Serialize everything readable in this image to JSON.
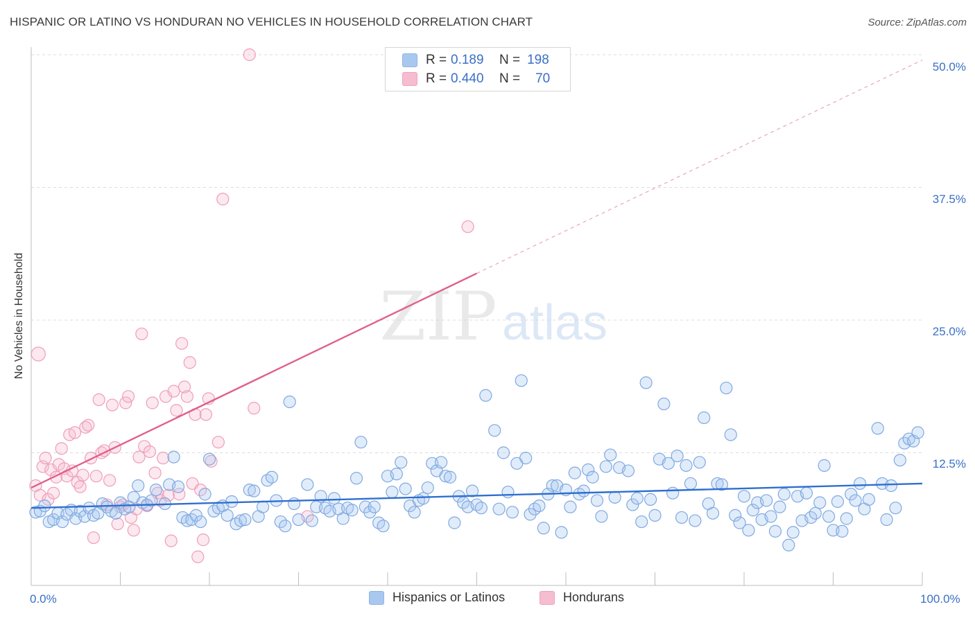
{
  "title": "HISPANIC OR LATINO VS HONDURAN NO VEHICLES IN HOUSEHOLD CORRELATION CHART",
  "source": "Source: ZipAtlas.com",
  "watermark": {
    "zip": "ZIP",
    "atlas": "atlas"
  },
  "colors": {
    "blue": "#8fb8ea",
    "blue_line": "#2e6fcf",
    "pink": "#f2a6bf",
    "pink_line": "#e0608a",
    "tick_text": "#3a6fc4"
  },
  "legend": {
    "rows": [
      {
        "r_label": "R =",
        "r_value": "0.189",
        "n_label": "N =",
        "n_value": "198",
        "color": "#a9c8f0"
      },
      {
        "r_label": "R =",
        "r_value": "0.440",
        "n_label": "N =",
        "n_value": "70",
        "color": "#f6bcd0"
      }
    ]
  },
  "bottom_legend": [
    {
      "label": "Hispanics or Latinos",
      "color": "#a9c8f0"
    },
    {
      "label": "Hondurans",
      "color": "#f6bcd0"
    }
  ],
  "chart_data": {
    "type": "scatter",
    "xlabel": "",
    "ylabel": "No Vehicles in Household",
    "xlim": [
      0,
      100
    ],
    "ylim": [
      0,
      50
    ],
    "x_tick_labels": [
      "0.0%",
      "100.0%"
    ],
    "y_tick_labels": [
      "12.5%",
      "25.0%",
      "37.5%",
      "50.0%"
    ],
    "y_ticks": [
      12.5,
      25,
      37.5,
      50
    ],
    "grid": true,
    "series": [
      {
        "name": "Hispanics or Latinos",
        "trend": {
          "x": [
            0,
            100
          ],
          "y": [
            7.3,
            9.6
          ]
        },
        "points": [
          [
            0.5,
            6.9
          ],
          [
            1,
            7.0
          ],
          [
            1.5,
            7.5
          ],
          [
            2,
            6.0
          ],
          [
            2.5,
            6.2
          ],
          [
            3,
            6.8
          ],
          [
            3.5,
            6.0
          ],
          [
            4,
            6.7
          ],
          [
            4.5,
            7.1
          ],
          [
            5,
            6.3
          ],
          [
            5.5,
            7.0
          ],
          [
            6,
            6.5
          ],
          [
            6.5,
            7.3
          ],
          [
            7,
            6.6
          ],
          [
            7.5,
            6.8
          ],
          [
            8,
            7.7
          ],
          [
            8.5,
            7.4
          ],
          [
            9,
            7.0
          ],
          [
            9.5,
            6.8
          ],
          [
            10,
            7.8
          ],
          [
            10.5,
            7.2
          ],
          [
            11,
            7.4
          ],
          [
            11.5,
            8.3
          ],
          [
            12,
            9.4
          ],
          [
            12.5,
            7.8
          ],
          [
            13,
            7.6
          ],
          [
            13.5,
            8.0
          ],
          [
            14,
            9.0
          ],
          [
            15,
            7.7
          ],
          [
            15.5,
            9.5
          ],
          [
            16,
            12.1
          ],
          [
            16.5,
            9.3
          ],
          [
            17,
            6.4
          ],
          [
            17.5,
            6.1
          ],
          [
            18,
            6.2
          ],
          [
            18.5,
            6.6
          ],
          [
            19,
            6.0
          ],
          [
            19.5,
            8.6
          ],
          [
            20,
            11.9
          ],
          [
            20.5,
            7.0
          ],
          [
            21,
            7.3
          ],
          [
            21.5,
            7.5
          ],
          [
            22,
            6.6
          ],
          [
            22.5,
            7.9
          ],
          [
            23,
            5.8
          ],
          [
            23.5,
            6.1
          ],
          [
            24,
            6.2
          ],
          [
            24.5,
            9.0
          ],
          [
            25,
            8.9
          ],
          [
            25.5,
            6.5
          ],
          [
            26,
            7.4
          ],
          [
            26.5,
            9.9
          ],
          [
            27,
            10.2
          ],
          [
            27.5,
            8.0
          ],
          [
            28,
            6.0
          ],
          [
            28.5,
            5.6
          ],
          [
            29,
            17.3
          ],
          [
            29.5,
            7.7
          ],
          [
            30,
            6.2
          ],
          [
            31,
            9.5
          ],
          [
            31.5,
            6.1
          ],
          [
            32,
            7.4
          ],
          [
            32.5,
            8.4
          ],
          [
            33,
            7.3
          ],
          [
            33.5,
            7.0
          ],
          [
            34,
            8.2
          ],
          [
            34.5,
            7.2
          ],
          [
            35,
            6.3
          ],
          [
            35.5,
            7.3
          ],
          [
            36,
            7.1
          ],
          [
            36.5,
            10.1
          ],
          [
            37,
            13.5
          ],
          [
            37.5,
            7.4
          ],
          [
            38,
            6.9
          ],
          [
            38.5,
            7.4
          ],
          [
            39,
            5.9
          ],
          [
            39.5,
            5.6
          ],
          [
            40,
            10.3
          ],
          [
            40.5,
            8.8
          ],
          [
            41,
            10.5
          ],
          [
            41.5,
            11.6
          ],
          [
            42,
            9.1
          ],
          [
            42.5,
            7.5
          ],
          [
            43,
            6.9
          ],
          [
            43.5,
            8.0
          ],
          [
            44,
            8.2
          ],
          [
            44.5,
            9.2
          ],
          [
            45,
            11.5
          ],
          [
            45.5,
            10.8
          ],
          [
            46,
            11.6
          ],
          [
            46.5,
            10.3
          ],
          [
            47,
            10.2
          ],
          [
            47.5,
            5.9
          ],
          [
            48,
            8.4
          ],
          [
            48.5,
            7.8
          ],
          [
            49,
            7.4
          ],
          [
            49.5,
            8.9
          ],
          [
            50,
            7.6
          ],
          [
            50.5,
            7.3
          ],
          [
            51,
            17.9
          ],
          [
            52,
            14.6
          ],
          [
            52.5,
            7.2
          ],
          [
            53,
            12.5
          ],
          [
            53.5,
            8.8
          ],
          [
            54,
            6.9
          ],
          [
            54.5,
            11.5
          ],
          [
            55,
            19.3
          ],
          [
            55.5,
            12.0
          ],
          [
            56,
            6.7
          ],
          [
            56.5,
            7.2
          ],
          [
            57,
            7.5
          ],
          [
            57.5,
            5.4
          ],
          [
            58,
            8.6
          ],
          [
            58.5,
            9.4
          ],
          [
            59,
            9.4
          ],
          [
            59.5,
            5.0
          ],
          [
            60,
            9.0
          ],
          [
            60.5,
            7.4
          ],
          [
            61,
            10.6
          ],
          [
            61.5,
            8.6
          ],
          [
            62,
            8.9
          ],
          [
            62.5,
            10.9
          ],
          [
            63,
            10.2
          ],
          [
            63.5,
            8.0
          ],
          [
            64,
            6.5
          ],
          [
            64.5,
            11.2
          ],
          [
            65,
            12.3
          ],
          [
            65.5,
            8.3
          ],
          [
            66,
            11.1
          ],
          [
            67,
            10.8
          ],
          [
            67.5,
            7.6
          ],
          [
            68,
            8.2
          ],
          [
            68.5,
            6.0
          ],
          [
            69,
            19.1
          ],
          [
            69.5,
            8.1
          ],
          [
            70,
            6.6
          ],
          [
            70.5,
            11.9
          ],
          [
            71,
            17.1
          ],
          [
            71.5,
            11.5
          ],
          [
            72,
            8.7
          ],
          [
            72.5,
            12.2
          ],
          [
            73,
            6.4
          ],
          [
            73.5,
            11.3
          ],
          [
            74,
            9.6
          ],
          [
            74.5,
            6.1
          ],
          [
            75,
            11.6
          ],
          [
            75.5,
            15.8
          ],
          [
            76,
            7.7
          ],
          [
            76.5,
            6.8
          ],
          [
            77,
            9.6
          ],
          [
            77.5,
            9.5
          ],
          [
            78,
            18.6
          ],
          [
            78.5,
            14.2
          ],
          [
            79,
            6.6
          ],
          [
            79.5,
            5.9
          ],
          [
            80,
            8.4
          ],
          [
            80.5,
            5.2
          ],
          [
            81,
            7.1
          ],
          [
            81.5,
            7.8
          ],
          [
            82,
            6.2
          ],
          [
            82.5,
            8.0
          ],
          [
            83,
            6.5
          ],
          [
            83.5,
            5.1
          ],
          [
            84,
            7.4
          ],
          [
            84.5,
            8.6
          ],
          [
            85,
            3.8
          ],
          [
            85.5,
            5.0
          ],
          [
            86,
            8.4
          ],
          [
            86.5,
            6.1
          ],
          [
            87,
            8.7
          ],
          [
            87.5,
            6.4
          ],
          [
            88,
            6.8
          ],
          [
            88.5,
            7.8
          ],
          [
            89,
            11.3
          ],
          [
            89.5,
            6.5
          ],
          [
            90,
            5.2
          ],
          [
            90.5,
            7.9
          ],
          [
            91,
            5.1
          ],
          [
            91.5,
            6.3
          ],
          [
            92,
            8.6
          ],
          [
            92.5,
            8.0
          ],
          [
            93,
            9.6
          ],
          [
            93.5,
            7.2
          ],
          [
            94,
            8.1
          ],
          [
            95,
            14.8
          ],
          [
            95.5,
            9.6
          ],
          [
            96,
            6.2
          ],
          [
            96.5,
            9.4
          ],
          [
            97,
            7.3
          ],
          [
            97.5,
            11.8
          ],
          [
            98,
            13.4
          ],
          [
            98.5,
            13.8
          ],
          [
            99,
            13.6
          ],
          [
            99.5,
            14.4
          ]
        ]
      },
      {
        "name": "Hondurans",
        "trend": {
          "x": [
            0,
            50
          ],
          "y": [
            9.2,
            29.4
          ]
        },
        "trend_extension": {
          "x": [
            50,
            100
          ],
          "y": [
            29.4,
            49.5
          ]
        },
        "points": [
          [
            0.5,
            9.4
          ],
          [
            0.8,
            21.8
          ],
          [
            1,
            8.5
          ],
          [
            1.3,
            11.2
          ],
          [
            1.6,
            12.0
          ],
          [
            1.9,
            8.1
          ],
          [
            2.2,
            10.9
          ],
          [
            2.5,
            8.7
          ],
          [
            2.8,
            10.2
          ],
          [
            3.1,
            11.4
          ],
          [
            3.4,
            12.9
          ],
          [
            3.7,
            11.0
          ],
          [
            4,
            10.3
          ],
          [
            4.3,
            14.2
          ],
          [
            4.6,
            10.8
          ],
          [
            4.9,
            14.4
          ],
          [
            5.2,
            9.7
          ],
          [
            5.5,
            9.3
          ],
          [
            5.8,
            10.4
          ],
          [
            6.1,
            14.9
          ],
          [
            6.4,
            15.1
          ],
          [
            6.7,
            12.0
          ],
          [
            7,
            4.5
          ],
          [
            7.3,
            10.3
          ],
          [
            7.6,
            17.5
          ],
          [
            7.9,
            12.5
          ],
          [
            8.2,
            12.7
          ],
          [
            8.5,
            7.6
          ],
          [
            8.8,
            9.9
          ],
          [
            9.1,
            17.0
          ],
          [
            9.4,
            13.0
          ],
          [
            9.7,
            5.8
          ],
          [
            10,
            7.4
          ],
          [
            10.3,
            7.6
          ],
          [
            10.6,
            17.2
          ],
          [
            10.9,
            17.8
          ],
          [
            11.2,
            6.4
          ],
          [
            11.5,
            5.2
          ],
          [
            11.8,
            7.2
          ],
          [
            12.1,
            12.1
          ],
          [
            12.4,
            23.7
          ],
          [
            12.7,
            13.1
          ],
          [
            13,
            7.5
          ],
          [
            13.3,
            12.6
          ],
          [
            13.6,
            17.2
          ],
          [
            13.9,
            10.6
          ],
          [
            14.2,
            8.7
          ],
          [
            14.5,
            8.0
          ],
          [
            14.8,
            12.0
          ],
          [
            15.1,
            17.8
          ],
          [
            15.4,
            8.5
          ],
          [
            15.7,
            4.2
          ],
          [
            16,
            18.3
          ],
          [
            16.3,
            16.5
          ],
          [
            16.6,
            8.6
          ],
          [
            16.9,
            22.8
          ],
          [
            17.2,
            18.7
          ],
          [
            17.5,
            17.8
          ],
          [
            17.8,
            21.0
          ],
          [
            18.1,
            9.6
          ],
          [
            18.4,
            16.1
          ],
          [
            18.7,
            2.7
          ],
          [
            19,
            9.0
          ],
          [
            19.3,
            4.3
          ],
          [
            19.6,
            16.1
          ],
          [
            19.9,
            17.6
          ],
          [
            20.2,
            11.7
          ],
          [
            21,
            13.5
          ],
          [
            21.5,
            36.4
          ],
          [
            24.5,
            50.0
          ],
          [
            25,
            16.7
          ],
          [
            31,
            6.5
          ],
          [
            49,
            33.8
          ]
        ]
      }
    ]
  }
}
